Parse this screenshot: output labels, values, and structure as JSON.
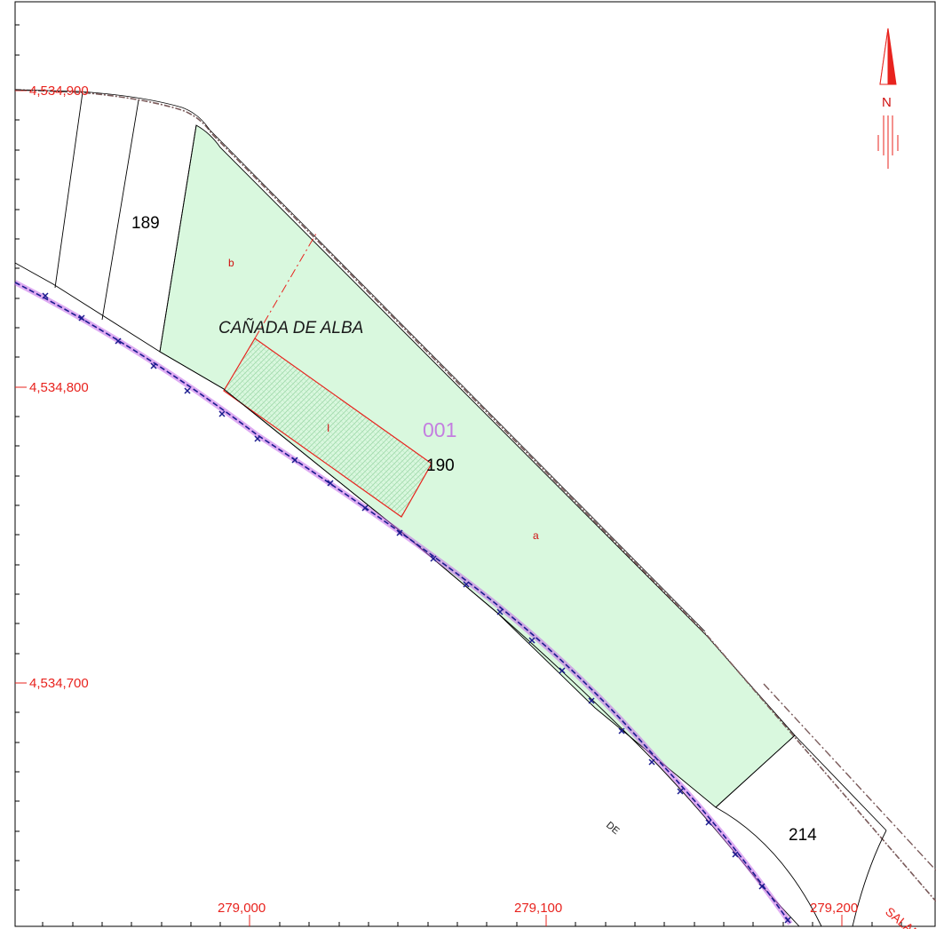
{
  "map": {
    "grid_labels": {
      "northing": [
        "4,534,900",
        "4,534,800",
        "4,534,700"
      ],
      "easting": [
        "279,000",
        "279,100",
        "279,200"
      ]
    },
    "parcels": {
      "p189": "189",
      "p190": "190",
      "p214": "214"
    },
    "subparcels": {
      "a": "a",
      "b": "b",
      "i": "I"
    },
    "street_name": "CAÑADA DE ALBA",
    "polygon_id": "001",
    "road_labels": {
      "de": "DE",
      "salamanca": "SALAMAN"
    },
    "north_arrow": {
      "letter": "N"
    },
    "colors": {
      "parcel_fill": "#d9f8de",
      "highlight_stroke": "#e8231e",
      "railway": "#1b1b8f",
      "railway_glow": "#c266e8",
      "grid_label": "#e8231e",
      "polygon_id": "#c47ee0"
    }
  }
}
